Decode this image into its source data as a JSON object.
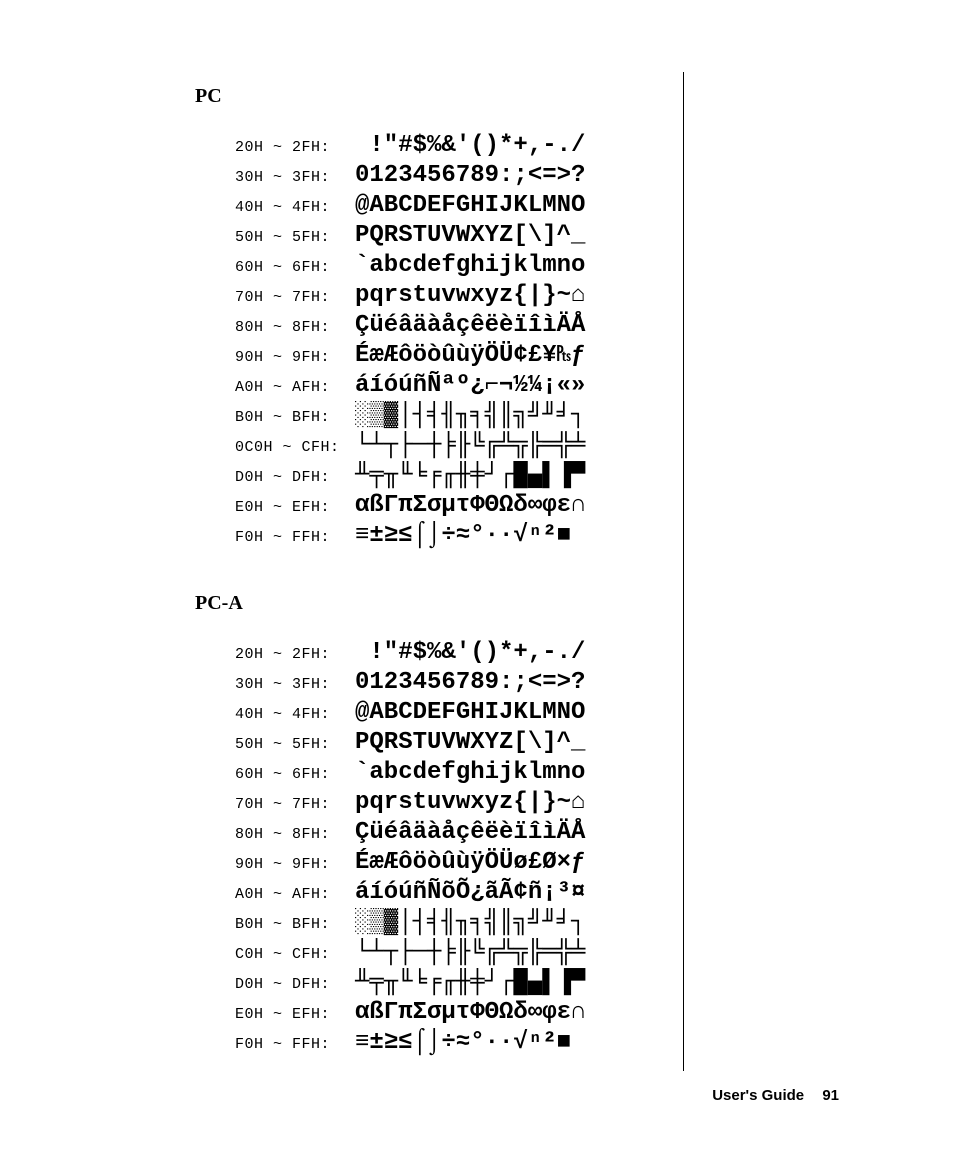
{
  "footer": {
    "label": "User's Guide",
    "page": "91"
  },
  "sections": [
    {
      "title": "PC",
      "rows": [
        {
          "range": "20H ~ 2FH:",
          "glyphs": " !\"#$%&'()*+,-./"
        },
        {
          "range": "30H ~ 3FH:",
          "glyphs": "0123456789:;<=>?"
        },
        {
          "range": "40H ~ 4FH:",
          "glyphs": "@ABCDEFGHIJKLMNO"
        },
        {
          "range": "50H ~ 5FH:",
          "glyphs": "PQRSTUVWXYZ[\\]^_"
        },
        {
          "range": "60H ~ 6FH:",
          "glyphs": "`abcdefghijklmno"
        },
        {
          "range": "70H ~ 7FH:",
          "glyphs": "pqrstuvwxyz{|}~⌂"
        },
        {
          "range": "80H ~ 8FH:",
          "glyphs": "ÇüéâäàåçêëèïîìÄÅ"
        },
        {
          "range": "90H ~ 9FH:",
          "glyphs": "ÉæÆôöòûùÿÖÜ¢£¥₧ƒ"
        },
        {
          "range": "A0H ~ AFH:",
          "glyphs": "áíóúñÑªº¿⌐¬½¼¡«»"
        },
        {
          "range": "B0H ~ BFH:",
          "glyphs": "░▒▓│┤╡╢╖╕╣║╗╝╜╛┐"
        },
        {
          "range": "0C0H ~ CFH:",
          "glyphs": "└┴┬├─┼╞╟╚╔╩╦╠═╬╧"
        },
        {
          "range": "D0H ~ DFH:",
          "glyphs": "╨╤╥╙╘╒╓╫╪┘┌█▄▌▐▀"
        },
        {
          "range": "E0H ~ EFH:",
          "glyphs": "αßΓπΣσµτΦΘΩδ∞φε∩"
        },
        {
          "range": "F0H ~ FFH:",
          "glyphs": "≡±≥≤⌠⌡÷≈°∙·√ⁿ²■ "
        }
      ]
    },
    {
      "title": "PC-A",
      "rows": [
        {
          "range": "20H ~ 2FH:",
          "glyphs": " !\"#$%&'()*+,-./"
        },
        {
          "range": "30H ~ 3FH:",
          "glyphs": "0123456789:;<=>?"
        },
        {
          "range": "40H ~ 4FH:",
          "glyphs": "@ABCDEFGHIJKLMNO"
        },
        {
          "range": "50H ~ 5FH:",
          "glyphs": "PQRSTUVWXYZ[\\]^_"
        },
        {
          "range": "60H ~ 6FH:",
          "glyphs": "`abcdefghijklmno"
        },
        {
          "range": "70H ~ 7FH:",
          "glyphs": "pqrstuvwxyz{|}~⌂"
        },
        {
          "range": "80H ~ 8FH:",
          "glyphs": "ÇüéâäàåçêëèïîìÄÅ"
        },
        {
          "range": "90H ~ 9FH:",
          "glyphs": "ÉæÆôöòûùÿÖÜø£Ø×ƒ"
        },
        {
          "range": "A0H ~ AFH:",
          "glyphs": "áíóúñÑõÕ¿ãÃ¢ñ¡³¤"
        },
        {
          "range": "B0H ~ BFH:",
          "glyphs": "░▒▓│┤╡╢╖╕╣║╗╝╜╛┐"
        },
        {
          "range": "C0H ~ CFH:",
          "glyphs": "└┴┬├─┼╞╟╚╔╩╦╠═╬╧"
        },
        {
          "range": "D0H ~ DFH:",
          "glyphs": "╨╤╥╙╘╒╓╫╪┘┌█▄▌▐▀"
        },
        {
          "range": "E0H ~ EFH:",
          "glyphs": "αßΓπΣσµτΦΘΩδ∞φε∩"
        },
        {
          "range": "F0H ~ FFH:",
          "glyphs": "≡±≥≤⌠⌡÷≈°∙·√ⁿ²■ "
        }
      ]
    }
  ]
}
